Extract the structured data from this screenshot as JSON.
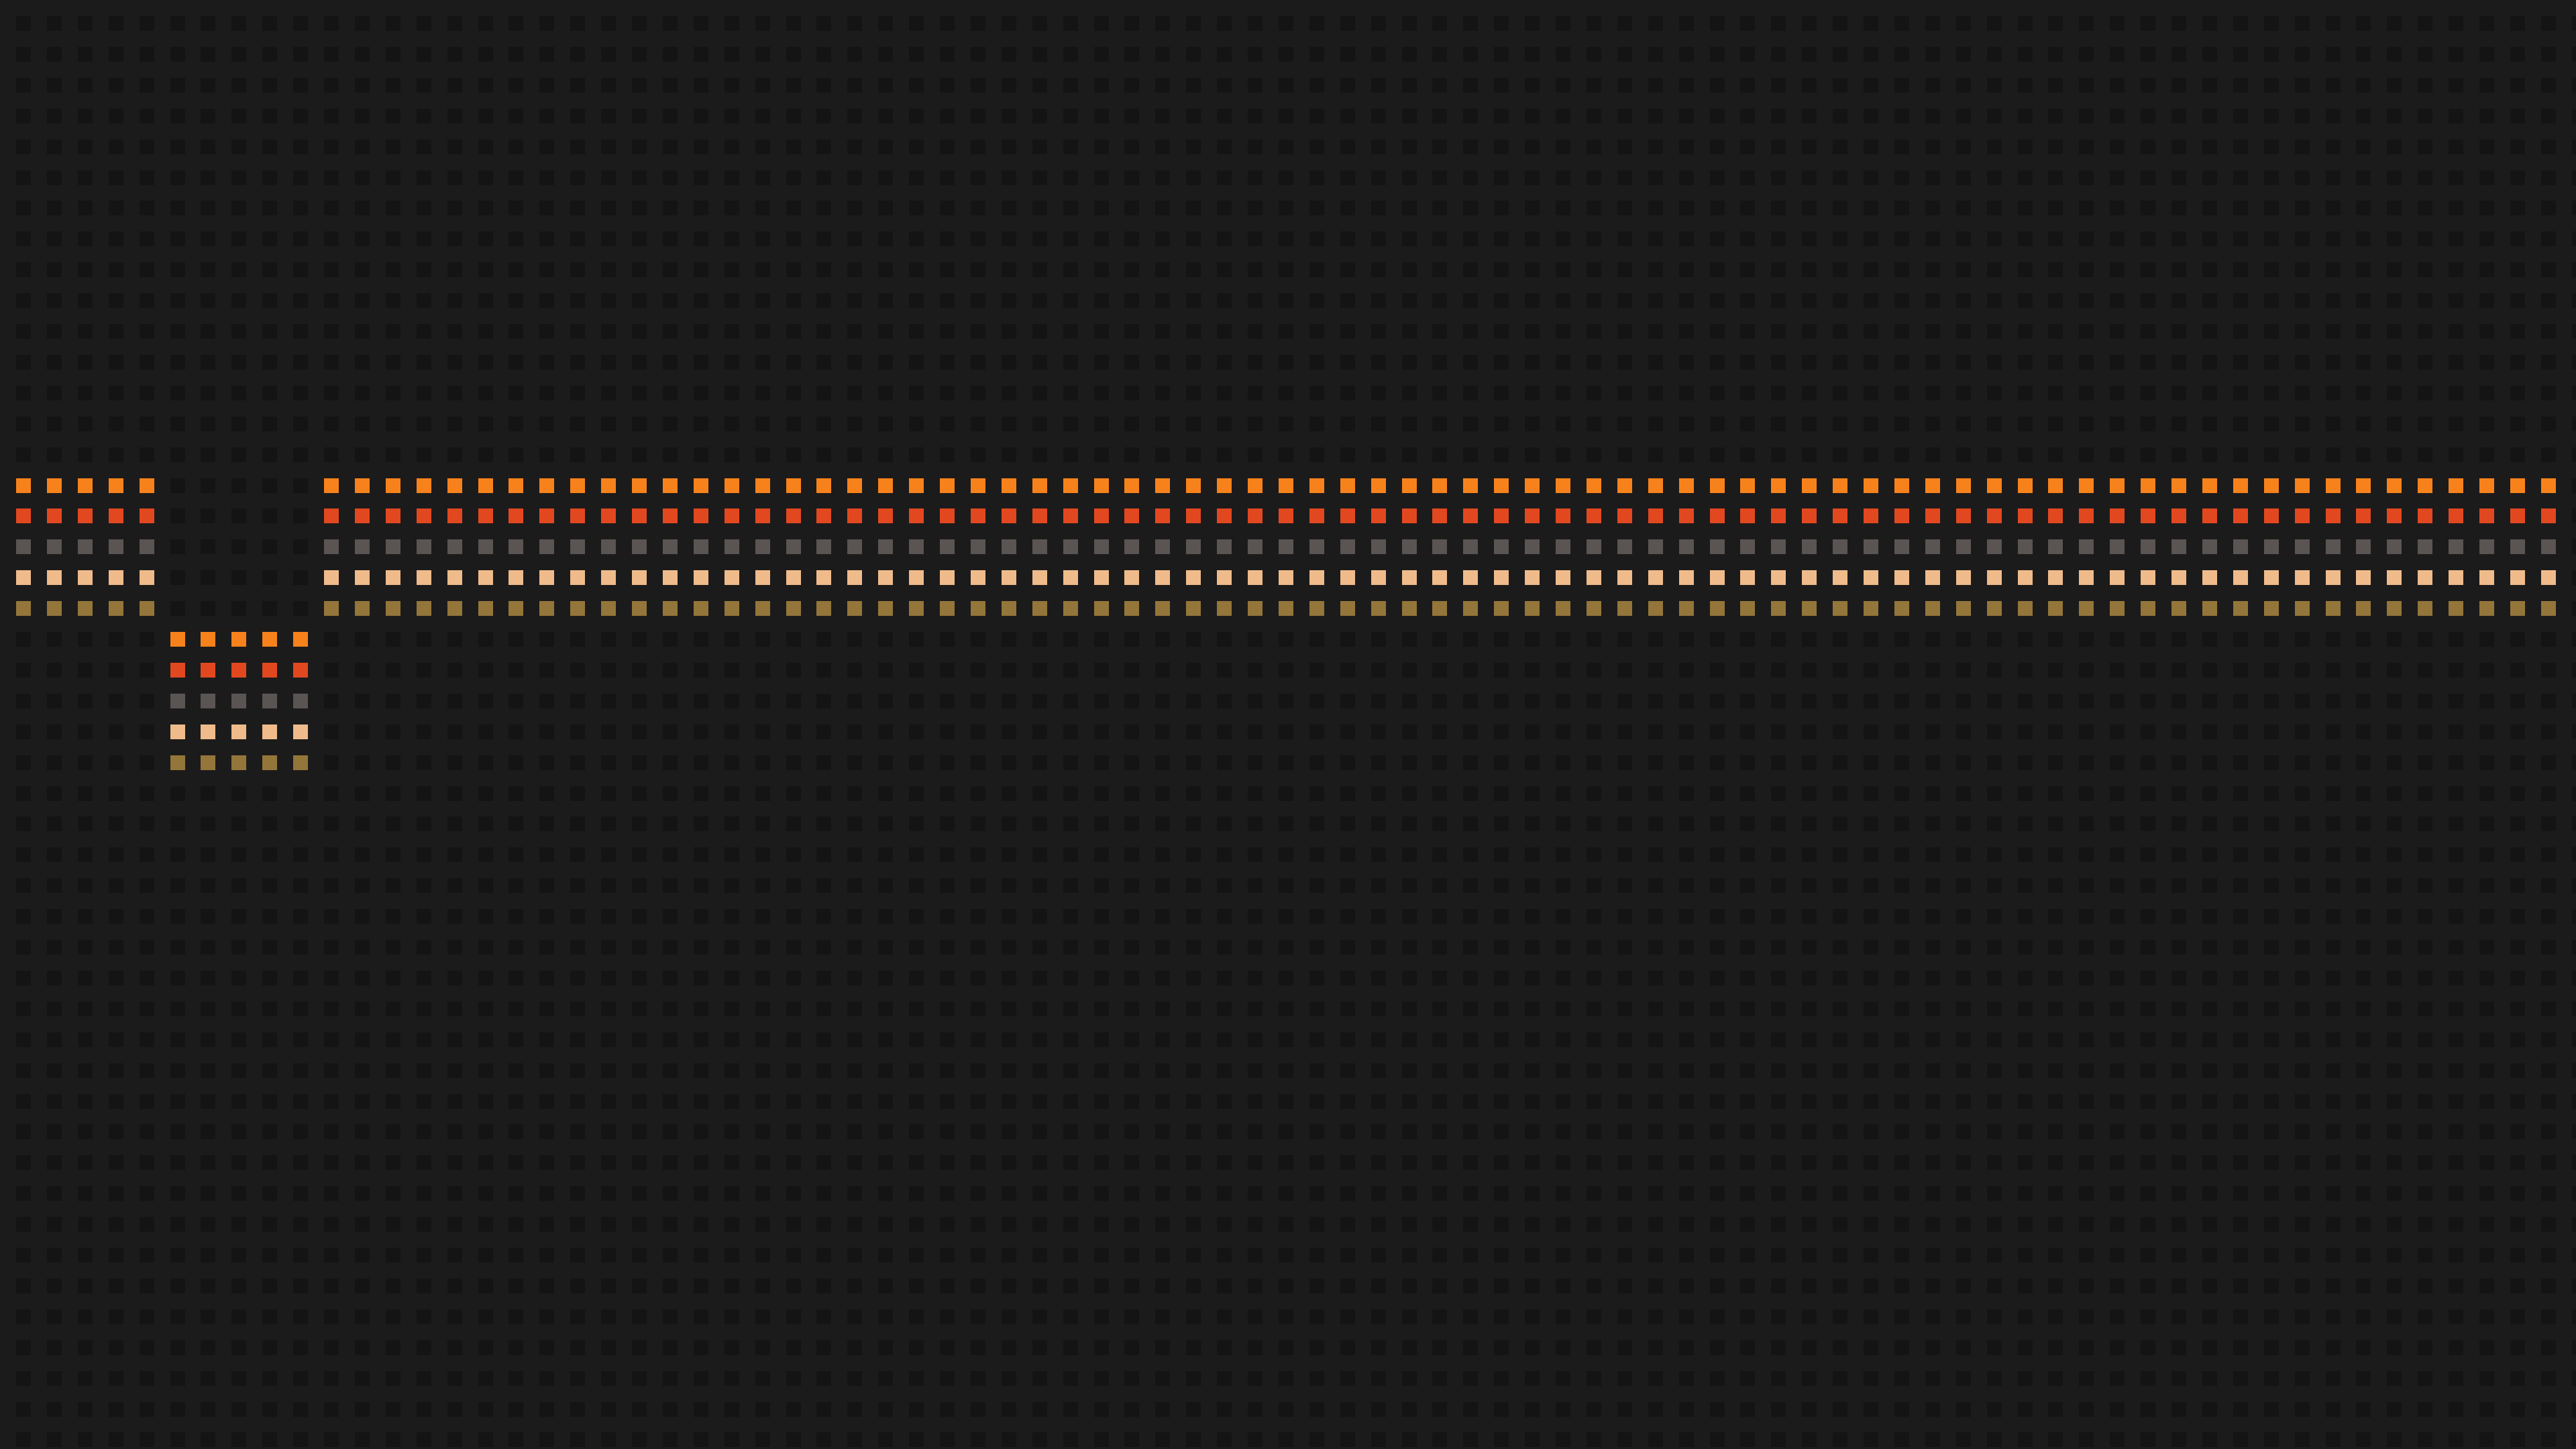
{
  "wallpaper": {
    "background_color": "#1c1b1c",
    "grid_dot_color": "#151415",
    "stripe_colors": [
      "#f7821b",
      "#e2481f",
      "#5a5452",
      "#efbb8b",
      "#94763a"
    ],
    "main_band": {
      "label": "striped-band-main",
      "first_column": 0,
      "last_column": 82,
      "gap_columns": [
        5,
        6,
        7,
        8,
        9
      ],
      "first_row": 15,
      "row_count": 5
    },
    "dropped_block": {
      "label": "striped-block-dropped",
      "first_column": 5,
      "last_column": 9,
      "first_row": 20,
      "row_count": 5
    }
  }
}
